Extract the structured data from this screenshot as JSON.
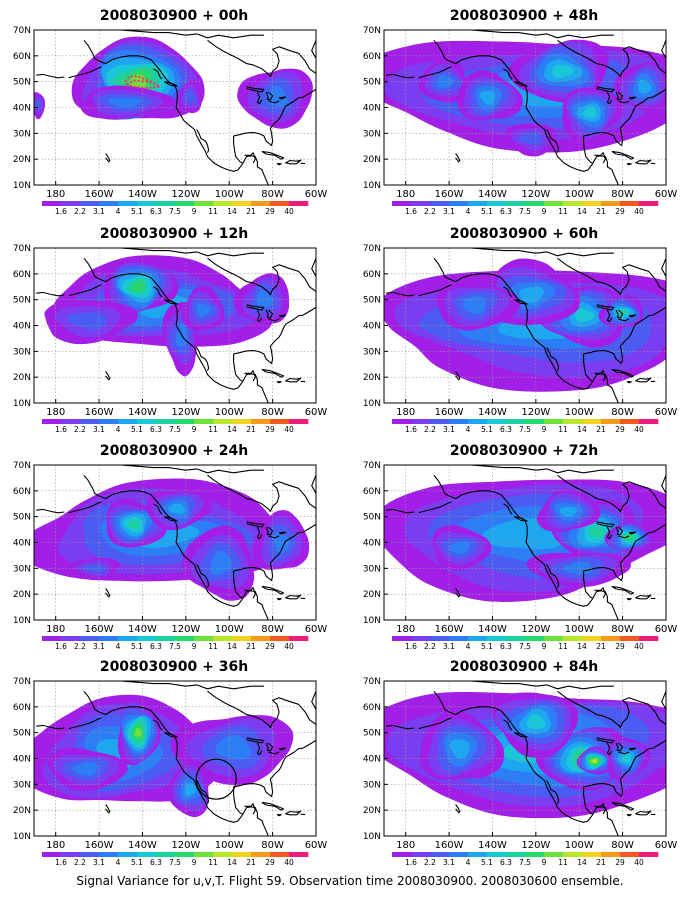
{
  "caption": "Signal Variance for u,v,T. Flight 59. Observation time 2008030900. 2008030600 ensemble.",
  "lat_labels": [
    "70N",
    "60N",
    "50N",
    "40N",
    "30N",
    "20N",
    "10N"
  ],
  "lon_labels": [
    "180",
    "160W",
    "140W",
    "120W",
    "100W",
    "80W",
    "60W"
  ],
  "colorbar": {
    "labels": [
      "1.6",
      "2.2",
      "3.1",
      "4",
      "5.1",
      "6.3",
      "7.5",
      "9",
      "11",
      "14",
      "21",
      "29",
      "40"
    ],
    "colors": [
      "#a11fe6",
      "#7a3ef0",
      "#4b5cf2",
      "#2d7df5",
      "#1ea6f0",
      "#19c7d6",
      "#1fcfa0",
      "#27d86a",
      "#6fe23a",
      "#b8e62e",
      "#f2d21e",
      "#f59a1c",
      "#f25a22",
      "#e81e7a"
    ]
  },
  "panels": [
    {
      "title": "2008030900 + 00h",
      "icon": "flight-track-icon"
    },
    {
      "title": "2008030900 + 48h"
    },
    {
      "title": "2008030900 + 12h"
    },
    {
      "title": "2008030900 + 60h"
    },
    {
      "title": "2008030900 + 24h"
    },
    {
      "title": "2008030900 + 72h"
    },
    {
      "title": "2008030900 + 36h",
      "icon": "circle-highlight-icon"
    },
    {
      "title": "2008030900 + 84h"
    }
  ]
}
